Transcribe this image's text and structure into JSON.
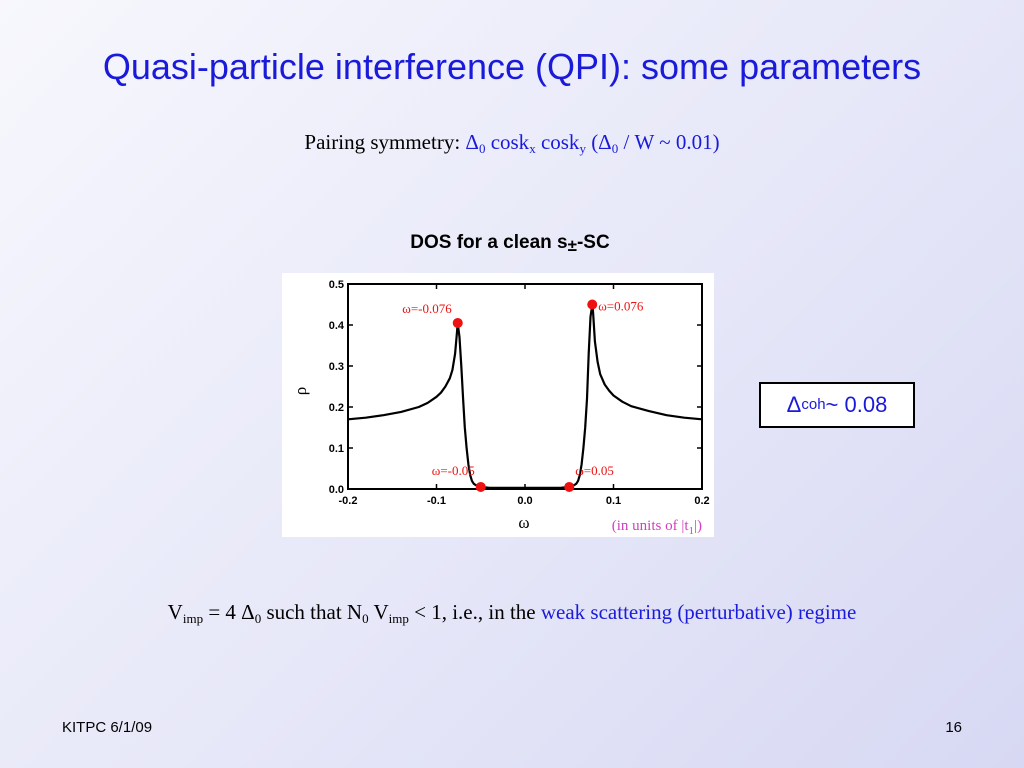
{
  "slide": {
    "title": "Quasi-particle interference (QPI): some parameters",
    "pairing": {
      "label": "Pairing symmetry: ",
      "delta": "Δ",
      "sub0": "0",
      "cos1": " cosk",
      "subx": "x",
      "cos2": " cosk",
      "suby": "y",
      "open": " (Δ",
      "sub0b": "0",
      "ratio": " / W ~ 0.01)"
    },
    "chart_heading": {
      "main": "DOS for a clean s",
      "pm": "±",
      "tail": "-SC"
    },
    "coh": {
      "delta": "Δ",
      "sub": "coh",
      "value": " ~ 0.08"
    },
    "vimp": {
      "v": "V",
      "imp": "imp",
      "eq": " = 4 Δ",
      "zero": "0",
      "such": "  such that N",
      "zero2": "0",
      "v2": " V",
      "imp2": "imp",
      "lt": " < 1, i.e., in the ",
      "regime": "weak scattering (perturbative) regime"
    },
    "footer": {
      "left": "KITPC 6/1/09",
      "page": "16"
    }
  },
  "colors": {
    "title_blue": "#1a1adb",
    "units_pink": "#d040c0",
    "marker_red": "#ee1111"
  },
  "chart_data": {
    "type": "line",
    "xlabel": "ω",
    "ylabel": "ρ",
    "xlim": [
      -0.2,
      0.2
    ],
    "ylim": [
      0,
      0.5
    ],
    "xticks": [
      "-0.2",
      "-0.1",
      "0.0",
      "0.1",
      "0.2"
    ],
    "yticks": [
      "0.0",
      "0.1",
      "0.2",
      "0.3",
      "0.4",
      "0.5"
    ],
    "units_note": "(in units of |t",
    "units_sub": "1",
    "units_close": "|)",
    "series": [
      {
        "x": [
          -0.2,
          -0.18,
          -0.16,
          -0.14,
          -0.12,
          -0.11,
          -0.1,
          -0.095,
          -0.09,
          -0.085,
          -0.082,
          -0.079,
          -0.077,
          -0.076,
          -0.074,
          -0.072,
          -0.07,
          -0.068,
          -0.066,
          -0.064,
          -0.062,
          -0.06,
          -0.058,
          -0.056,
          -0.054,
          -0.052,
          -0.05,
          -0.045,
          -0.04,
          -0.02,
          0.0,
          0.02,
          0.04,
          0.045,
          0.05,
          0.052,
          0.054,
          0.056,
          0.058,
          0.06,
          0.062,
          0.064,
          0.066,
          0.068,
          0.07,
          0.072,
          0.074,
          0.076,
          0.077,
          0.079,
          0.082,
          0.085,
          0.09,
          0.095,
          0.1,
          0.11,
          0.12,
          0.14,
          0.16,
          0.18,
          0.2
        ],
        "y": [
          0.17,
          0.174,
          0.18,
          0.188,
          0.2,
          0.21,
          0.225,
          0.235,
          0.25,
          0.27,
          0.29,
          0.33,
          0.38,
          0.405,
          0.37,
          0.3,
          0.22,
          0.15,
          0.1,
          0.06,
          0.035,
          0.02,
          0.013,
          0.01,
          0.008,
          0.006,
          0.005,
          0.004,
          0.003,
          0.003,
          0.003,
          0.003,
          0.003,
          0.004,
          0.005,
          0.006,
          0.008,
          0.01,
          0.013,
          0.02,
          0.035,
          0.06,
          0.1,
          0.15,
          0.22,
          0.33,
          0.42,
          0.45,
          0.43,
          0.36,
          0.31,
          0.28,
          0.255,
          0.24,
          0.228,
          0.213,
          0.202,
          0.19,
          0.18,
          0.174,
          0.17
        ]
      }
    ],
    "markers": [
      {
        "x": -0.076,
        "y": 0.405,
        "label": "ω=-0.076"
      },
      {
        "x": 0.076,
        "y": 0.45,
        "label": "ω=0.076"
      },
      {
        "x": -0.05,
        "y": 0.005,
        "label": "ω=-0.05"
      },
      {
        "x": 0.05,
        "y": 0.005,
        "label": "ω=0.05"
      }
    ]
  }
}
